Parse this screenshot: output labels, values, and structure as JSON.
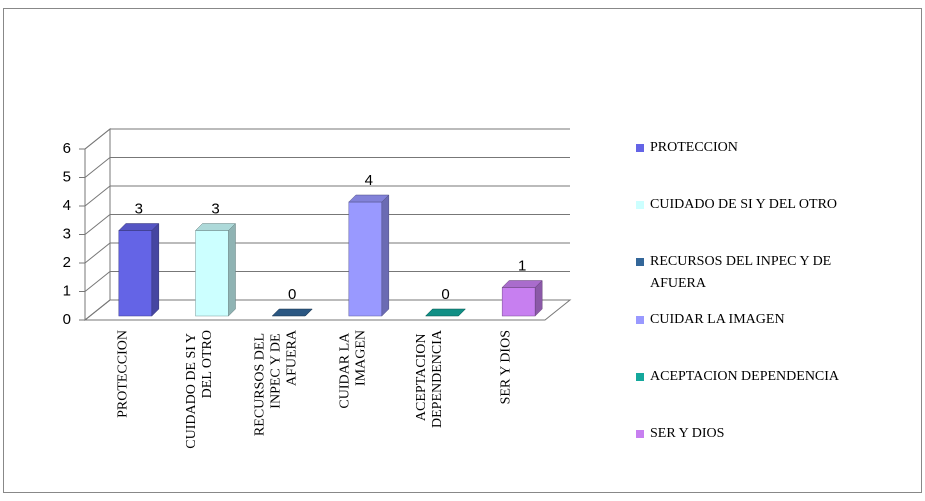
{
  "chart_data": {
    "type": "bar3d",
    "categories": [
      "PROTECCION",
      "CUIDADO DE SI Y DEL OTRO",
      "RECURSOS DEL INPEC Y DE AFUERA",
      "CUIDAR LA IMAGEN",
      "ACEPTACION DEPENDENCIA",
      "SER Y DIOS"
    ],
    "values": [
      3,
      3,
      0,
      4,
      0,
      1
    ],
    "colors": [
      "#6464e6",
      "#ccffff",
      "#336699",
      "#9999ff",
      "#14a89c",
      "#c77ff0"
    ],
    "ylim": [
      0,
      6
    ],
    "yticks": [
      0,
      1,
      2,
      3,
      4,
      5,
      6
    ],
    "grid": true,
    "legend": "right"
  }
}
